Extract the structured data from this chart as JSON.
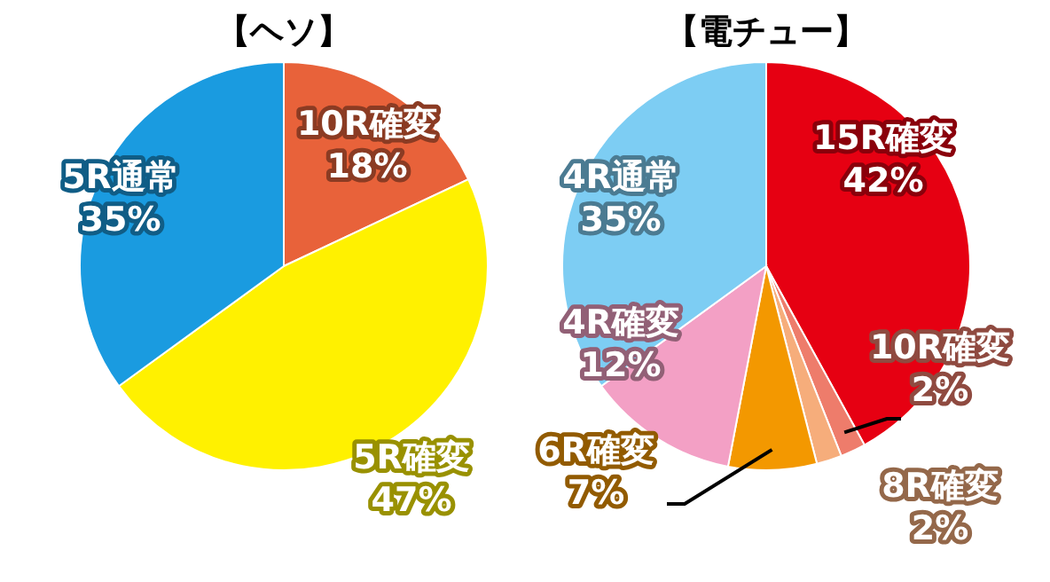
{
  "chart_data": [
    {
      "type": "pie",
      "title": "【ヘソ】",
      "categories": [
        "10R確変",
        "5R確変",
        "5R通常"
      ],
      "values": [
        18,
        47,
        35
      ],
      "value_labels": [
        "18%",
        "47%",
        "35%"
      ],
      "colors": [
        "#e8623a",
        "#fff100",
        "#1a9be0"
      ]
    },
    {
      "type": "pie",
      "title": "【電チュー】",
      "categories": [
        "15R確変",
        "10R確変",
        "8R確変",
        "6R確変",
        "4R確変",
        "4R通常"
      ],
      "values": [
        42,
        2,
        2,
        7,
        12,
        35
      ],
      "value_labels": [
        "42%",
        "2%",
        "2%",
        "7%",
        "12%",
        "35%"
      ],
      "colors": [
        "#e60012",
        "#ee7c6b",
        "#f6ad7b",
        "#f39800",
        "#f3a0c5",
        "#7dcdf3"
      ]
    }
  ]
}
